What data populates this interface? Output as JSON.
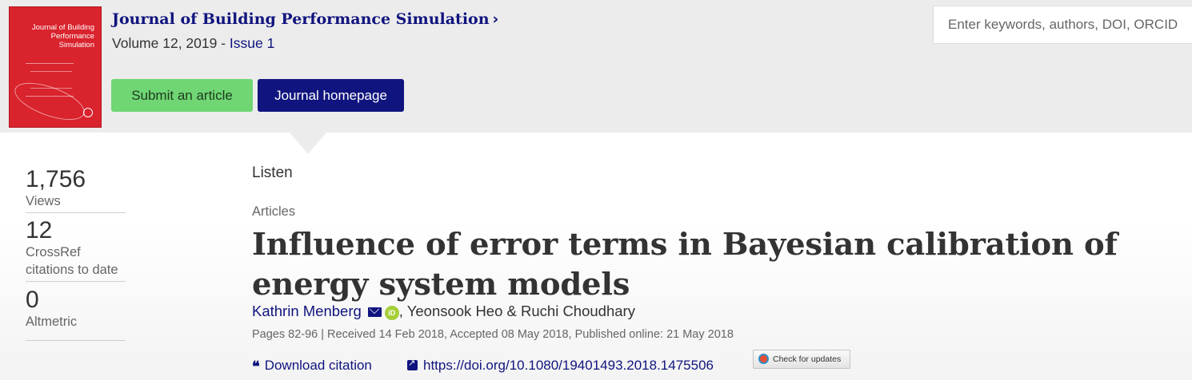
{
  "header": {
    "cover_title_lines": [
      "Journal of Building",
      "Performance",
      "Simulation"
    ],
    "journal_title": "Journal of Building Performance Simulation",
    "journal_chevron": "›",
    "volume_text": "Volume 12, 2019 - ",
    "issue_text": "Issue 1",
    "submit_label": "Submit an article",
    "homepage_label": "Journal homepage",
    "search_placeholder": "Enter keywords, authors, DOI, ORCID"
  },
  "metrics": [
    {
      "value": "1,756",
      "label": "Views"
    },
    {
      "value": "12",
      "label": "CrossRef citations to date"
    },
    {
      "value": "0",
      "label": "Altmetric"
    }
  ],
  "article": {
    "listen": "Listen",
    "category": "Articles",
    "title": "Influence of error terms in Bayesian calibration of energy system models",
    "author_1": "Kathrin Menberg",
    "authors_rest": ", Yeonsook Heo & Ruchi Choudhary",
    "orcid_text": "iD",
    "meta": "Pages 82-96 | Received 14 Feb 2018, Accepted 08 May 2018, Published online: 21 May 2018",
    "download_citation": "Download citation",
    "doi": "https://doi.org/10.1080/19401493.2018.1475506",
    "check_updates": "Check for updates"
  },
  "icons": {
    "quote": "quote-icon",
    "external": "external-link-icon",
    "mail": "mail-icon",
    "orcid": "orcid-icon",
    "check": "crossmark-icon"
  },
  "colors": {
    "brand_navy": "#10147e",
    "submit_green": "#6fd673",
    "cover_red": "#d9232d",
    "header_gray": "#ececec"
  }
}
